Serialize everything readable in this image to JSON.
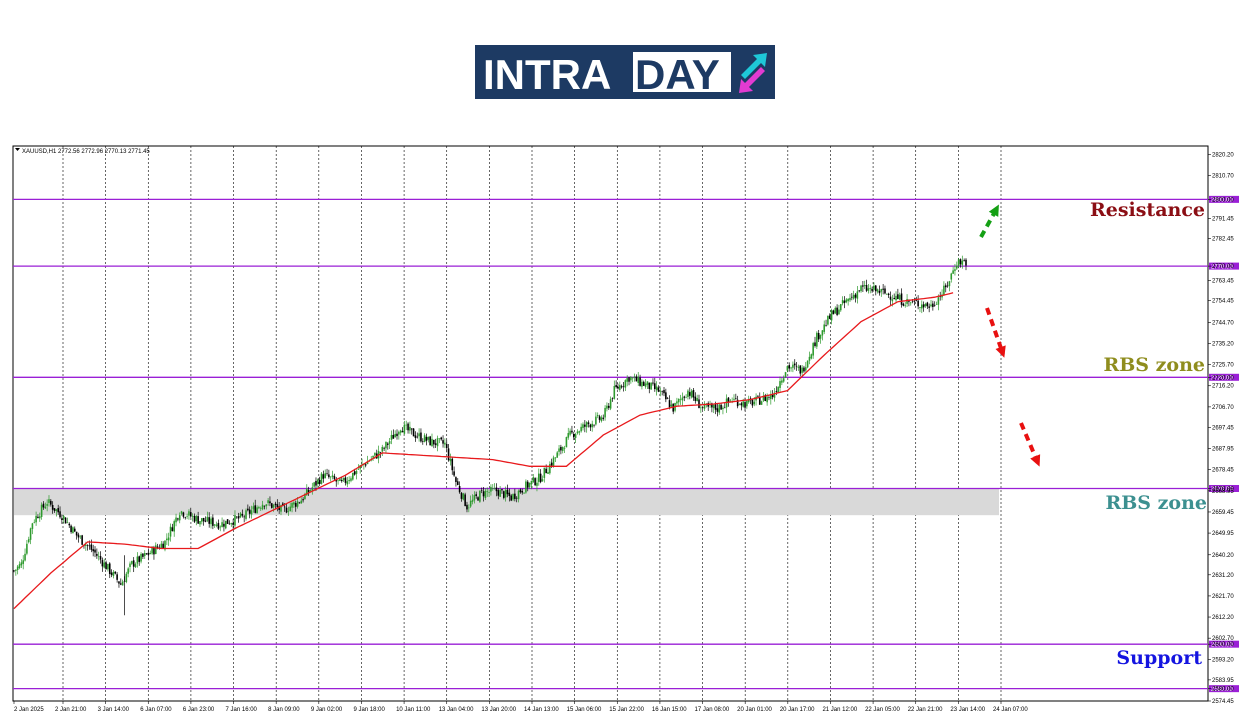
{
  "logo": {
    "text_part1": "INTRA",
    "text_part2": "DAY",
    "bg_color": "#1d3a63",
    "box_color": "#ffffff",
    "arrow_up_color": "#1ec8d8",
    "arrow_down_color": "#e23bd1"
  },
  "chart_data": {
    "type": "candlestick",
    "symbol_header": "XAUUSD,H1  2772.56 2772.96 2770.13 2771.45",
    "ylim": [
      2574.45,
      2824.0
    ],
    "yticks": [
      "2820.20",
      "2810.70",
      "2800.00",
      "2791.45",
      "2782.45",
      "2770.00",
      "2763.45",
      "2754.45",
      "2744.70",
      "2735.20",
      "2725.70",
      "2720.00",
      "2716.20",
      "2706.70",
      "2697.45",
      "2687.95",
      "2678.45",
      "2670.00",
      "2668.95",
      "2659.45",
      "2649.95",
      "2640.20",
      "2631.20",
      "2621.70",
      "2612.20",
      "2602.70",
      "2600.00",
      "2593.20",
      "2583.95",
      "2580.00",
      "2574.45"
    ],
    "xticks": [
      "2 Jan 2025",
      "2 Jan 21:00",
      "3 Jan 14:00",
      "6 Jan 07:00",
      "6 Jan 23:00",
      "7 Jan 16:00",
      "8 Jan 09:00",
      "9 Jan 02:00",
      "9 Jan 18:00",
      "10 Jan 11:00",
      "13 Jan 04:00",
      "13 Jan 20:00",
      "14 Jan 13:00",
      "15 Jan 06:00",
      "15 Jan 22:00",
      "16 Jan 15:00",
      "17 Jan 08:00",
      "20 Jan 01:00",
      "20 Jan 17:00",
      "21 Jan 12:00",
      "22 Jan 05:00",
      "22 Jan 21:00",
      "23 Jan 14:00",
      "24 Jan 07:00"
    ],
    "horizontal_levels": [
      {
        "price": 2800.0,
        "label": "2800.00",
        "color": "#9a1fd6"
      },
      {
        "price": 2770.0,
        "label": "2770.00",
        "color": "#9a1fd6"
      },
      {
        "price": 2720.0,
        "label": "2720.00",
        "color": "#9a1fd6"
      },
      {
        "price": 2670.0,
        "label": "2670.00",
        "color": "#9a1fd6"
      },
      {
        "price": 2600.0,
        "label": "2600.00",
        "color": "#9a1fd6"
      },
      {
        "price": 2580.0,
        "label": "2580.00",
        "color": "#9a1fd6"
      }
    ],
    "zone": {
      "from": 2658.0,
      "to": 2670.0,
      "color": "#d9d9d9"
    },
    "close_anchors": [
      [
        0,
        2633
      ],
      [
        4,
        2636
      ],
      [
        10,
        2655
      ],
      [
        18,
        2664
      ],
      [
        26,
        2658
      ],
      [
        34,
        2649
      ],
      [
        44,
        2641
      ],
      [
        52,
        2633
      ],
      [
        58,
        2627
      ],
      [
        64,
        2636
      ],
      [
        72,
        2640
      ],
      [
        82,
        2646
      ],
      [
        90,
        2660
      ],
      [
        100,
        2656
      ],
      [
        112,
        2654
      ],
      [
        124,
        2657
      ],
      [
        136,
        2664
      ],
      [
        146,
        2660
      ],
      [
        156,
        2665
      ],
      [
        168,
        2676
      ],
      [
        178,
        2672
      ],
      [
        190,
        2681
      ],
      [
        200,
        2687
      ],
      [
        210,
        2698
      ],
      [
        216,
        2695
      ],
      [
        226,
        2691
      ],
      [
        234,
        2690
      ],
      [
        240,
        2673
      ],
      [
        246,
        2662
      ],
      [
        254,
        2668
      ],
      [
        262,
        2669
      ],
      [
        270,
        2666
      ],
      [
        278,
        2671
      ],
      [
        286,
        2675
      ],
      [
        294,
        2684
      ],
      [
        302,
        2694
      ],
      [
        312,
        2699
      ],
      [
        320,
        2702
      ],
      [
        326,
        2714
      ],
      [
        334,
        2720
      ],
      [
        342,
        2717
      ],
      [
        350,
        2714
      ],
      [
        358,
        2706
      ],
      [
        366,
        2714
      ],
      [
        374,
        2706
      ],
      [
        382,
        2706
      ],
      [
        390,
        2710
      ],
      [
        398,
        2708
      ],
      [
        406,
        2710
      ],
      [
        412,
        2712
      ],
      [
        420,
        2725
      ],
      [
        428,
        2723
      ],
      [
        436,
        2738
      ],
      [
        444,
        2748
      ],
      [
        452,
        2754
      ],
      [
        460,
        2760
      ],
      [
        468,
        2759
      ],
      [
        476,
        2757
      ],
      [
        484,
        2754
      ],
      [
        492,
        2753
      ],
      [
        498,
        2752
      ],
      [
        506,
        2760
      ],
      [
        512,
        2772
      ],
      [
        517,
        2772
      ]
    ],
    "ma_anchors": [
      [
        0,
        2616
      ],
      [
        20,
        2632
      ],
      [
        40,
        2646
      ],
      [
        60,
        2645
      ],
      [
        80,
        2643
      ],
      [
        100,
        2643
      ],
      [
        120,
        2652
      ],
      [
        140,
        2660
      ],
      [
        160,
        2668
      ],
      [
        180,
        2676
      ],
      [
        200,
        2686
      ],
      [
        220,
        2685
      ],
      [
        240,
        2684
      ],
      [
        260,
        2683
      ],
      [
        280,
        2680
      ],
      [
        300,
        2680
      ],
      [
        320,
        2694
      ],
      [
        340,
        2703
      ],
      [
        360,
        2707
      ],
      [
        380,
        2708
      ],
      [
        400,
        2710
      ],
      [
        420,
        2714
      ],
      [
        440,
        2730
      ],
      [
        460,
        2745
      ],
      [
        480,
        2754
      ],
      [
        500,
        2756
      ],
      [
        510,
        2758
      ]
    ],
    "bars_count": 518,
    "annotations": [
      {
        "text": "Resistance",
        "color": "#8b0e14"
      },
      {
        "text": "RBS zone",
        "color": "#8f8d1e"
      },
      {
        "text": "RBS zone",
        "color": "#3c9090"
      },
      {
        "text": "Support",
        "color": "#1414e0"
      }
    ],
    "colors": {
      "bull": "#2e9a2e",
      "bear": "#000000",
      "ma": "#e8191c",
      "grid": "#000000",
      "up_arrow": "#14a014",
      "down_arrow": "#e81010"
    }
  }
}
